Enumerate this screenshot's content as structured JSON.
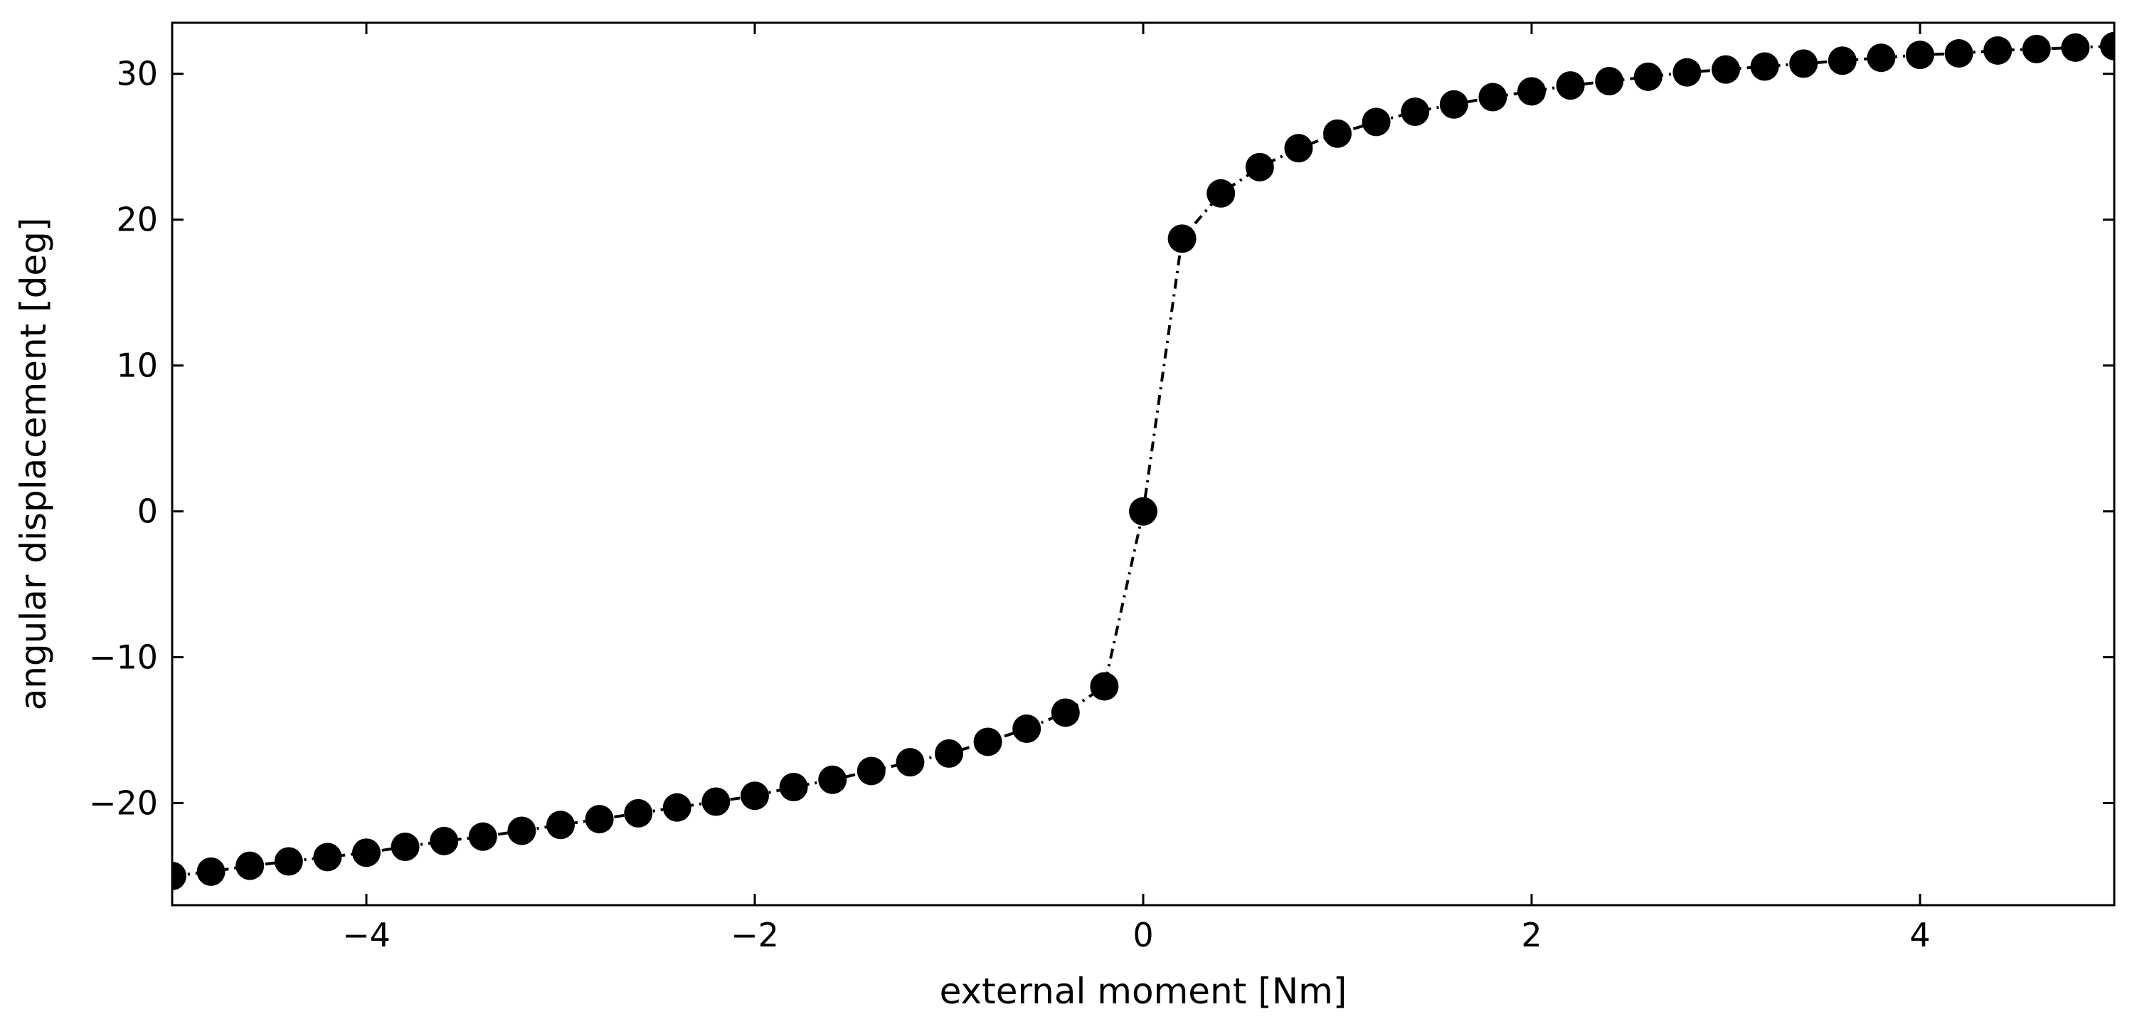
{
  "chart_data": {
    "type": "scatter",
    "title": "",
    "xlabel": "external moment [Nm]",
    "ylabel": "angular displacement [deg]",
    "xlim": [
      -5,
      5
    ],
    "ylim": [
      -27,
      33.5
    ],
    "xticks": [
      -4,
      -2,
      0,
      2,
      4
    ],
    "xtick_labels": [
      "−4",
      "−2",
      "0",
      "2",
      "4"
    ],
    "yticks": [
      -20,
      -10,
      0,
      10,
      20,
      30
    ],
    "ytick_labels": [
      "−20",
      "−10",
      "0",
      "10",
      "20",
      "30"
    ],
    "grid": false,
    "legend": "none",
    "line_style": "dash-dot",
    "marker": "filled-circle",
    "color": "#000000",
    "series": [
      {
        "x": [
          -5.0,
          -4.8,
          -4.6,
          -4.4,
          -4.2,
          -4.0,
          -3.8,
          -3.6,
          -3.4,
          -3.2,
          -3.0,
          -2.8,
          -2.6,
          -2.4,
          -2.2,
          -2.0,
          -1.8,
          -1.6,
          -1.4,
          -1.2,
          -1.0,
          -0.8,
          -0.6,
          -0.4,
          -0.2,
          0.0,
          0.2,
          0.4,
          0.6,
          0.8,
          1.0,
          1.2,
          1.4,
          1.6,
          1.8,
          2.0,
          2.2,
          2.4,
          2.6,
          2.8,
          3.0,
          3.2,
          3.4,
          3.6,
          3.8,
          4.0,
          4.2,
          4.4,
          4.6,
          4.8,
          5.0
        ],
        "y": [
          -25.0,
          -24.7,
          -24.3,
          -24.0,
          -23.7,
          -23.4,
          -23.0,
          -22.6,
          -22.3,
          -21.9,
          -21.5,
          -21.1,
          -20.7,
          -20.3,
          -19.9,
          -19.5,
          -18.9,
          -18.4,
          -17.8,
          -17.2,
          -16.6,
          -15.8,
          -14.9,
          -13.8,
          -12.0,
          0.0,
          18.7,
          21.8,
          23.6,
          24.9,
          25.9,
          26.7,
          27.4,
          27.9,
          28.4,
          28.8,
          29.2,
          29.5,
          29.8,
          30.1,
          30.3,
          30.5,
          30.7,
          30.9,
          31.1,
          31.3,
          31.4,
          31.6,
          31.7,
          31.8,
          31.9
        ]
      }
    ]
  }
}
